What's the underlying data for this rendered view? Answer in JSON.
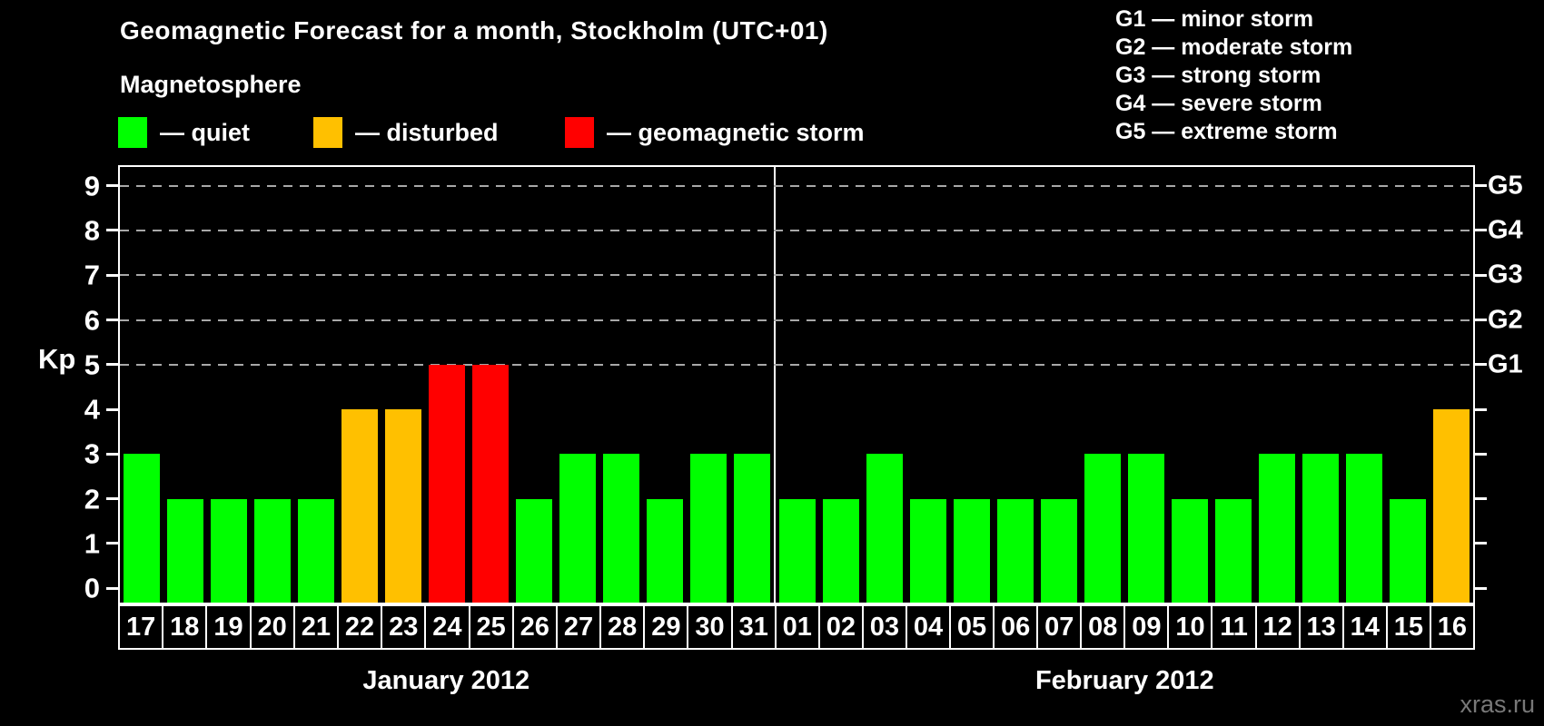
{
  "title": "Geomagnetic Forecast for a month, Stockholm (UTC+01)",
  "legend": {
    "heading": "Magnetosphere",
    "items": [
      {
        "key": "quiet",
        "label": "— quiet",
        "color": "#00ff00"
      },
      {
        "key": "disturbed",
        "label": "— disturbed",
        "color": "#ffc000"
      },
      {
        "key": "storm",
        "label": "— geomagnetic storm",
        "color": "#ff0000"
      }
    ]
  },
  "storm_scale_legend": [
    "G1 — minor storm",
    "G2 — moderate storm",
    "G3 — strong storm",
    "G4 — severe storm",
    "G5 — extreme storm"
  ],
  "watermark": "xras.ru",
  "chart_data": {
    "type": "bar",
    "ylabel": "Kp",
    "ylim": [
      0,
      9
    ],
    "y_ticks": [
      0,
      1,
      2,
      3,
      4,
      5,
      6,
      7,
      8,
      9
    ],
    "gridlines_at": [
      5,
      6,
      7,
      8,
      9
    ],
    "right_axis": [
      {
        "label": "G1",
        "kp": 5
      },
      {
        "label": "G2",
        "kp": 6
      },
      {
        "label": "G3",
        "kp": 7
      },
      {
        "label": "G4",
        "kp": 8
      },
      {
        "label": "G5",
        "kp": 9
      }
    ],
    "colors": {
      "quiet": "#00ff00",
      "disturbed": "#ffc000",
      "storm": "#ff0000"
    },
    "months": [
      {
        "label": "January 2012",
        "days": [
          {
            "day": "17",
            "kp": 3,
            "status": "quiet"
          },
          {
            "day": "18",
            "kp": 2,
            "status": "quiet"
          },
          {
            "day": "19",
            "kp": 2,
            "status": "quiet"
          },
          {
            "day": "20",
            "kp": 2,
            "status": "quiet"
          },
          {
            "day": "21",
            "kp": 2,
            "status": "quiet"
          },
          {
            "day": "22",
            "kp": 4,
            "status": "disturbed"
          },
          {
            "day": "23",
            "kp": 4,
            "status": "disturbed"
          },
          {
            "day": "24",
            "kp": 5,
            "status": "storm"
          },
          {
            "day": "25",
            "kp": 5,
            "status": "storm"
          },
          {
            "day": "26",
            "kp": 2,
            "status": "quiet"
          },
          {
            "day": "27",
            "kp": 3,
            "status": "quiet"
          },
          {
            "day": "28",
            "kp": 3,
            "status": "quiet"
          },
          {
            "day": "29",
            "kp": 2,
            "status": "quiet"
          },
          {
            "day": "30",
            "kp": 3,
            "status": "quiet"
          },
          {
            "day": "31",
            "kp": 3,
            "status": "quiet"
          }
        ]
      },
      {
        "label": "February 2012",
        "days": [
          {
            "day": "01",
            "kp": 2,
            "status": "quiet"
          },
          {
            "day": "02",
            "kp": 2,
            "status": "quiet"
          },
          {
            "day": "03",
            "kp": 3,
            "status": "quiet"
          },
          {
            "day": "04",
            "kp": 2,
            "status": "quiet"
          },
          {
            "day": "05",
            "kp": 2,
            "status": "quiet"
          },
          {
            "day": "06",
            "kp": 2,
            "status": "quiet"
          },
          {
            "day": "07",
            "kp": 2,
            "status": "quiet"
          },
          {
            "day": "08",
            "kp": 3,
            "status": "quiet"
          },
          {
            "day": "09",
            "kp": 3,
            "status": "quiet"
          },
          {
            "day": "10",
            "kp": 2,
            "status": "quiet"
          },
          {
            "day": "11",
            "kp": 2,
            "status": "quiet"
          },
          {
            "day": "12",
            "kp": 3,
            "status": "quiet"
          },
          {
            "day": "13",
            "kp": 3,
            "status": "quiet"
          },
          {
            "day": "14",
            "kp": 3,
            "status": "quiet"
          },
          {
            "day": "15",
            "kp": 2,
            "status": "quiet"
          },
          {
            "day": "16",
            "kp": 4,
            "status": "disturbed"
          }
        ]
      }
    ]
  }
}
